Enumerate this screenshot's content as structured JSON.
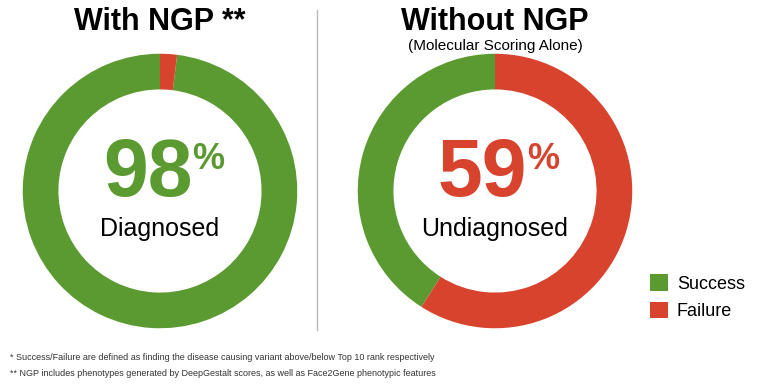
{
  "chart_data": [
    {
      "type": "donut",
      "title": "With NGP **",
      "categories": [
        "Success",
        "Failure"
      ],
      "values": [
        98,
        2
      ],
      "colors": [
        "#5b9a30",
        "#d8432e"
      ],
      "center_label": "98%",
      "center_text": "Diagnosed"
    },
    {
      "type": "donut",
      "title": "Without NGP",
      "subtitle": "(Molecular Scoring Alone)",
      "categories": [
        "Success",
        "Failure"
      ],
      "values": [
        41,
        59
      ],
      "colors": [
        "#5b9a30",
        "#d8432e"
      ],
      "center_label": "59%",
      "center_text": "Undiagnosed",
      "legend": "lower right"
    }
  ],
  "footnotes": [
    "* Success/Failure are defined as finding the disease causing variant above/below Top 10 rank respectively",
    "** NGP includes phenotypes generated by DeepGestalt scores, as well as Face2Gene phenotypic features"
  ]
}
